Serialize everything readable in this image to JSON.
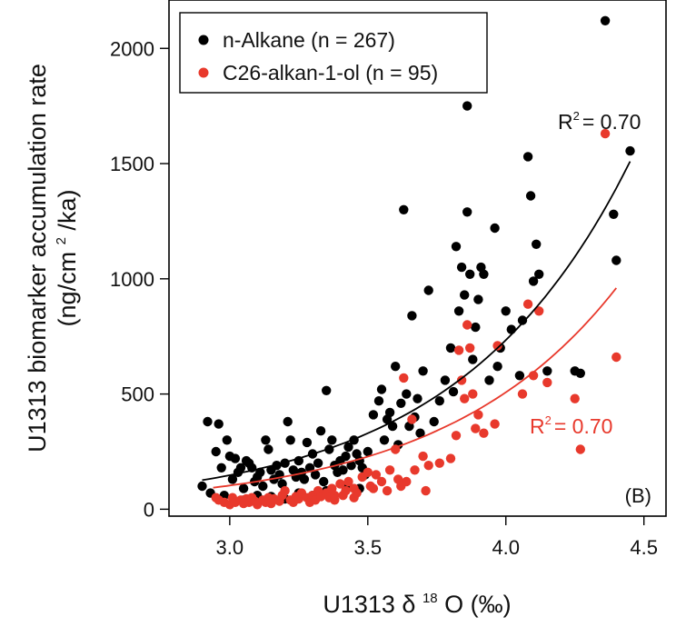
{
  "chart_data": {
    "type": "scatter",
    "panel_label": "(B)",
    "xlabel": {
      "prefix": "U1313",
      "delta": "δ",
      "sup": "18",
      "suffix": "O (‰)"
    },
    "ylabel": {
      "line1": "U1313 biomarker accumulation rate",
      "line2_prefix": "(ng/cm",
      "line2_sup": "2",
      "line2_suffix": "/ka)"
    },
    "xlim": [
      2.78,
      4.58
    ],
    "ylim": [
      -30,
      2210
    ],
    "xticks": [
      3.0,
      3.5,
      4.0,
      4.5
    ],
    "xtick_labels": [
      "3.0",
      "3.5",
      "4.0",
      "4.5"
    ],
    "yticks": [
      0,
      500,
      1000,
      1500,
      2000
    ],
    "ytick_labels": [
      "0",
      "500",
      "1000",
      "1500",
      "2000"
    ],
    "grid": false,
    "legend_position": "top-left",
    "series": [
      {
        "name": "n-Alkane (n = 267)",
        "color": "#000000",
        "fit": {
          "a": 1.21,
          "b": 1.602,
          "x_range": [
            2.9,
            4.45
          ],
          "r2_text": "R² = 0.70",
          "r2_prefix": "R",
          "r2_sup": "2",
          "r2_suffix": "= 0.70"
        },
        "points": [
          [
            2.9,
            100
          ],
          [
            2.92,
            380
          ],
          [
            2.95,
            250
          ],
          [
            2.96,
            370
          ],
          [
            2.97,
            180
          ],
          [
            2.99,
            300
          ],
          [
            3.0,
            230
          ],
          [
            3.01,
            130
          ],
          [
            3.02,
            220
          ],
          [
            3.03,
            160
          ],
          [
            3.04,
            180
          ],
          [
            3.05,
            90
          ],
          [
            3.06,
            210
          ],
          [
            3.07,
            200
          ],
          [
            3.08,
            180
          ],
          [
            3.09,
            120
          ],
          [
            3.1,
            140
          ],
          [
            3.11,
            160
          ],
          [
            3.12,
            100
          ],
          [
            3.13,
            300
          ],
          [
            3.14,
            260
          ],
          [
            3.15,
            170
          ],
          [
            3.16,
            130
          ],
          [
            3.17,
            190
          ],
          [
            3.18,
            150
          ],
          [
            3.19,
            110
          ],
          [
            3.2,
            200
          ],
          [
            3.21,
            380
          ],
          [
            3.22,
            300
          ],
          [
            3.23,
            170
          ],
          [
            3.24,
            140
          ],
          [
            3.25,
            210
          ],
          [
            3.26,
            160
          ],
          [
            3.27,
            130
          ],
          [
            3.28,
            290
          ],
          [
            3.29,
            180
          ],
          [
            3.3,
            240
          ],
          [
            3.31,
            150
          ],
          [
            3.32,
            200
          ],
          [
            3.33,
            340
          ],
          [
            3.34,
            120
          ],
          [
            3.35,
            515
          ],
          [
            3.36,
            260
          ],
          [
            3.37,
            300
          ],
          [
            3.38,
            190
          ],
          [
            3.39,
            160
          ],
          [
            3.4,
            210
          ],
          [
            3.41,
            170
          ],
          [
            3.42,
            230
          ],
          [
            3.43,
            270
          ],
          [
            3.44,
            190
          ],
          [
            3.45,
            300
          ],
          [
            3.46,
            240
          ],
          [
            3.47,
            210
          ],
          [
            3.48,
            180
          ],
          [
            3.49,
            150
          ],
          [
            3.5,
            250
          ],
          [
            3.52,
            410
          ],
          [
            3.54,
            470
          ],
          [
            3.55,
            520
          ],
          [
            3.56,
            300
          ],
          [
            3.57,
            390
          ],
          [
            3.58,
            420
          ],
          [
            3.59,
            360
          ],
          [
            3.6,
            620
          ],
          [
            3.61,
            280
          ],
          [
            3.62,
            460
          ],
          [
            3.63,
            1300
          ],
          [
            3.64,
            500
          ],
          [
            3.65,
            360
          ],
          [
            3.66,
            840
          ],
          [
            3.67,
            400
          ],
          [
            3.68,
            480
          ],
          [
            3.69,
            330
          ],
          [
            3.7,
            600
          ],
          [
            3.72,
            950
          ],
          [
            3.74,
            380
          ],
          [
            3.76,
            470
          ],
          [
            3.78,
            560
          ],
          [
            3.8,
            700
          ],
          [
            3.81,
            510
          ],
          [
            3.82,
            1140
          ],
          [
            3.83,
            860
          ],
          [
            3.84,
            1050
          ],
          [
            3.85,
            930
          ],
          [
            3.86,
            1750
          ],
          [
            3.86,
            1290
          ],
          [
            3.87,
            1020
          ],
          [
            3.88,
            650
          ],
          [
            3.89,
            790
          ],
          [
            3.9,
            910
          ],
          [
            3.91,
            1050
          ],
          [
            3.92,
            1020
          ],
          [
            3.94,
            560
          ],
          [
            3.96,
            1220
          ],
          [
            3.97,
            620
          ],
          [
            3.98,
            700
          ],
          [
            4.0,
            860
          ],
          [
            4.02,
            780
          ],
          [
            4.05,
            580
          ],
          [
            4.06,
            820
          ],
          [
            4.08,
            1530
          ],
          [
            4.09,
            1360
          ],
          [
            4.1,
            990
          ],
          [
            4.11,
            1150
          ],
          [
            4.12,
            1020
          ],
          [
            4.15,
            600
          ],
          [
            4.25,
            600
          ],
          [
            4.27,
            590
          ],
          [
            4.36,
            2120
          ],
          [
            4.39,
            1280
          ],
          [
            4.4,
            1080
          ],
          [
            4.45,
            1555
          ],
          [
            2.93,
            70
          ],
          [
            2.98,
            60
          ],
          [
            3.05,
            40
          ],
          [
            3.1,
            60
          ],
          [
            3.15,
            55
          ],
          [
            3.2,
            45
          ],
          [
            3.25,
            70
          ],
          [
            3.3,
            60
          ],
          [
            3.35,
            80
          ],
          [
            3.42,
            100
          ],
          [
            3.47,
            90
          ]
        ]
      },
      {
        "name": "C26-alkan-1-ol (n = 95)",
        "color": "#e8392c",
        "fit": {
          "a": 0.86,
          "b": 1.595,
          "x_range": [
            2.94,
            4.4
          ],
          "r2_text": "R² = 0.70",
          "r2_prefix": "R",
          "r2_sup": "2",
          "r2_suffix": "= 0.70"
        },
        "points": [
          [
            2.95,
            50
          ],
          [
            2.96,
            40
          ],
          [
            2.98,
            30
          ],
          [
            3.0,
            20
          ],
          [
            3.01,
            50
          ],
          [
            3.02,
            30
          ],
          [
            3.04,
            40
          ],
          [
            3.05,
            25
          ],
          [
            3.06,
            45
          ],
          [
            3.07,
            30
          ],
          [
            3.08,
            50
          ],
          [
            3.09,
            35
          ],
          [
            3.1,
            20
          ],
          [
            3.12,
            40
          ],
          [
            3.13,
            30
          ],
          [
            3.14,
            50
          ],
          [
            3.15,
            25
          ],
          [
            3.16,
            45
          ],
          [
            3.18,
            35
          ],
          [
            3.19,
            60
          ],
          [
            3.2,
            80
          ],
          [
            3.22,
            40
          ],
          [
            3.23,
            30
          ],
          [
            3.24,
            55
          ],
          [
            3.25,
            45
          ],
          [
            3.26,
            70
          ],
          [
            3.28,
            50
          ],
          [
            3.29,
            30
          ],
          [
            3.3,
            60
          ],
          [
            3.31,
            40
          ],
          [
            3.32,
            80
          ],
          [
            3.33,
            55
          ],
          [
            3.35,
            70
          ],
          [
            3.36,
            50
          ],
          [
            3.37,
            90
          ],
          [
            3.38,
            40
          ],
          [
            3.4,
            110
          ],
          [
            3.41,
            60
          ],
          [
            3.42,
            80
          ],
          [
            3.43,
            120
          ],
          [
            3.45,
            50
          ],
          [
            3.46,
            70
          ],
          [
            3.48,
            140
          ],
          [
            3.5,
            160
          ],
          [
            3.51,
            100
          ],
          [
            3.52,
            90
          ],
          [
            3.53,
            150
          ],
          [
            3.55,
            120
          ],
          [
            3.57,
            80
          ],
          [
            3.58,
            170
          ],
          [
            3.6,
            260
          ],
          [
            3.61,
            130
          ],
          [
            3.62,
            100
          ],
          [
            3.63,
            570
          ],
          [
            3.64,
            120
          ],
          [
            3.66,
            390
          ],
          [
            3.67,
            170
          ],
          [
            3.7,
            230
          ],
          [
            3.71,
            80
          ],
          [
            3.72,
            190
          ],
          [
            3.76,
            200
          ],
          [
            3.8,
            220
          ],
          [
            3.82,
            320
          ],
          [
            3.83,
            690
          ],
          [
            3.84,
            560
          ],
          [
            3.85,
            480
          ],
          [
            3.86,
            800
          ],
          [
            3.87,
            700
          ],
          [
            3.88,
            500
          ],
          [
            3.89,
            350
          ],
          [
            3.9,
            410
          ],
          [
            3.92,
            330
          ],
          [
            3.96,
            370
          ],
          [
            3.97,
            710
          ],
          [
            4.06,
            500
          ],
          [
            4.08,
            890
          ],
          [
            4.1,
            580
          ],
          [
            4.12,
            860
          ],
          [
            4.15,
            550
          ],
          [
            4.25,
            480
          ],
          [
            4.27,
            260
          ],
          [
            4.36,
            1630
          ],
          [
            4.4,
            660
          ],
          [
            3.45,
            90
          ],
          [
            3.38,
            60
          ]
        ]
      }
    ]
  }
}
